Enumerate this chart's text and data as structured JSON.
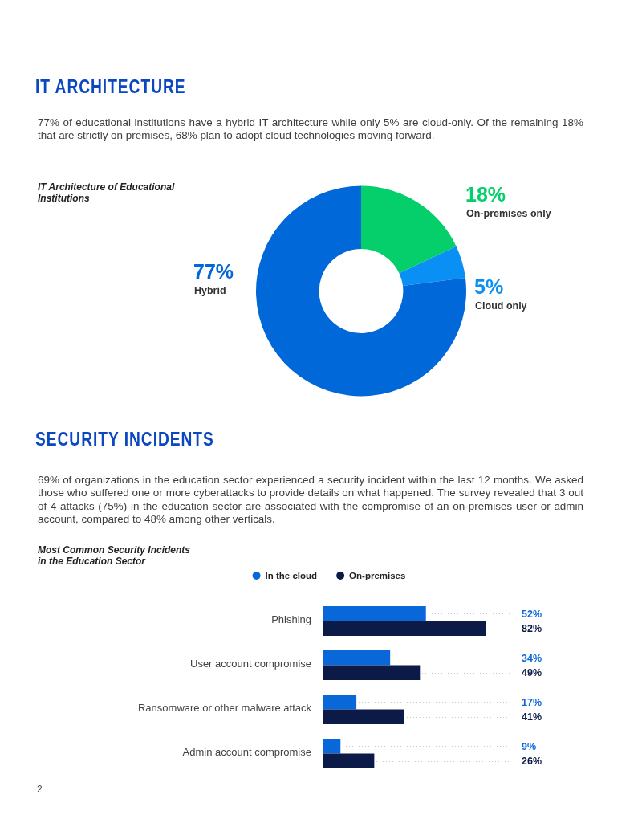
{
  "chart_data": [
    {
      "type": "donut",
      "title": "IT Architecture of Educational Institutions",
      "categories": [
        "On-premises only",
        "Cloud only",
        "Hybrid"
      ],
      "values": [
        18,
        5,
        77
      ],
      "colors": [
        "#04cf6a",
        "#0a8ff5",
        "#0068d9"
      ],
      "value_labels": [
        "18%",
        "5%",
        "77%"
      ],
      "annotations": [
        "IT ARCHITECTURE",
        "77% of educational institutions have a hybrid IT architecture while only 5% are cloud-only. Of the remaining 18% that are strictly on premises, 68% plan to adopt cloud technologies moving forward."
      ]
    },
    {
      "type": "bar",
      "orientation": "horizontal",
      "title": "Most Common Security Incidents in the Education Sector",
      "categories": [
        "Phishing",
        "User account compromise",
        "Ransomware or other malware attack",
        "Admin account compromise"
      ],
      "series": [
        {
          "name": "In the cloud",
          "color": "#0868da",
          "values": [
            52,
            34,
            17,
            9
          ],
          "value_labels": [
            "52%",
            "34%",
            "17%",
            "9%"
          ]
        },
        {
          "name": "On-premises",
          "color": "#0c1a47",
          "values": [
            82,
            49,
            41,
            26
          ],
          "value_labels": [
            "82%",
            "49%",
            "41%",
            "26%"
          ]
        }
      ],
      "legend": "top",
      "annotations": [
        "SECURITY INCIDENTS",
        "69% of organizations in the education sector experienced a security incident within the last 12 months. We asked those who suffered one or more cyberattacks to provide details on what happened. The survey revealed that 3 out of 4 attacks (75%) in the education sector are associated with the compromise of an on-premises user or admin account, compared to 48% among other verticals.",
        "2"
      ]
    }
  ]
}
